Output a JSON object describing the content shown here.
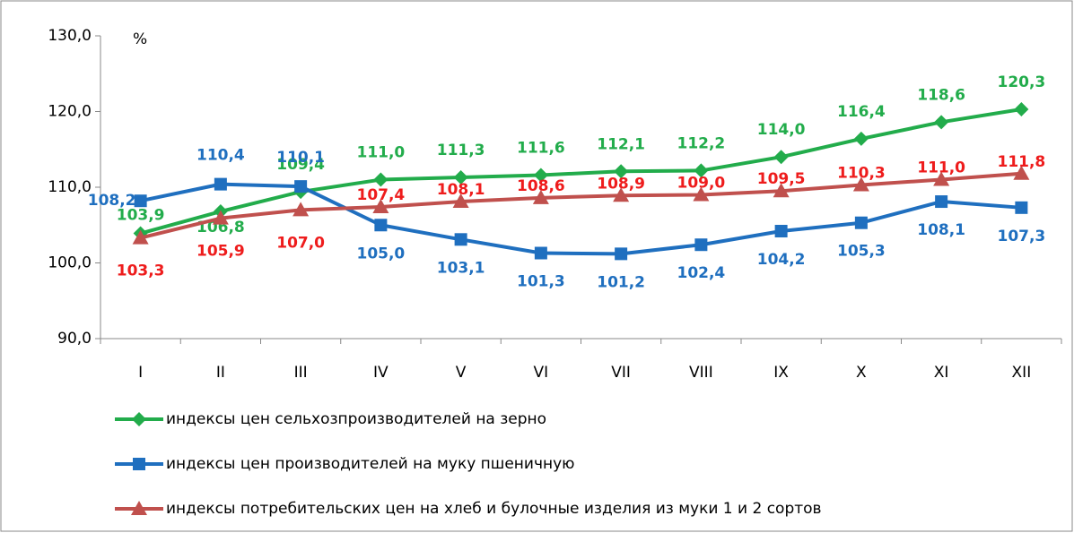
{
  "chart_data": {
    "type": "line",
    "ylabel": "%",
    "categories": [
      "I",
      "II",
      "III",
      "IV",
      "V",
      "VI",
      "VII",
      "VIII",
      "IX",
      "X",
      "XI",
      "XII"
    ],
    "ylim": [
      90,
      130
    ],
    "yticks": [
      {
        "value": 90,
        "label": "90,0"
      },
      {
        "value": 100,
        "label": "100,0"
      },
      {
        "value": 110,
        "label": "110,0"
      },
      {
        "value": 120,
        "label": "120,0"
      },
      {
        "value": 130,
        "label": "130,0"
      }
    ],
    "legend": "bottom",
    "series": [
      {
        "name": "индексы цен сельхозпроизводителей на зерно",
        "color": "#22ac4b",
        "label_color": "#22ac4b",
        "marker": "diamond",
        "values": [
          103.9,
          106.8,
          109.4,
          111.0,
          111.3,
          111.6,
          112.1,
          112.2,
          114.0,
          116.4,
          118.6,
          120.3
        ],
        "value_labels": [
          "103,9",
          "106,8",
          "109,4",
          "111,0",
          "111,3",
          "111,6",
          "112,1",
          "112,2",
          "114,0",
          "116,4",
          "118,6",
          "120,3"
        ]
      },
      {
        "name": "индексы цен производителей на муку пшеничную",
        "color": "#1f6fbf",
        "label_color": "#1f6fbf",
        "marker": "square",
        "values": [
          108.2,
          110.4,
          110.1,
          105.0,
          103.1,
          101.3,
          101.2,
          102.4,
          104.2,
          105.3,
          108.1,
          107.3
        ],
        "value_labels": [
          "108,2",
          "110,4",
          "110,1",
          "105,0",
          "103,1",
          "101,3",
          "101,2",
          "102,4",
          "104,2",
          "105,3",
          "108,1",
          "107,3"
        ]
      },
      {
        "name": "индексы потребительских цен на хлеб и булочные изделия из муки 1 и 2 сортов",
        "color": "#c0504d",
        "label_color": "#ee1c1c",
        "marker": "triangle",
        "values": [
          103.3,
          105.9,
          107.0,
          107.4,
          108.1,
          108.6,
          108.9,
          109.0,
          109.5,
          110.3,
          111.0,
          111.8
        ],
        "value_labels": [
          "103,3",
          "105,9",
          "107,0",
          "107,4",
          "108,1",
          "108,6",
          "108,9",
          "109,0",
          "109,5",
          "110,3",
          "111,0",
          "111,8"
        ]
      }
    ]
  }
}
